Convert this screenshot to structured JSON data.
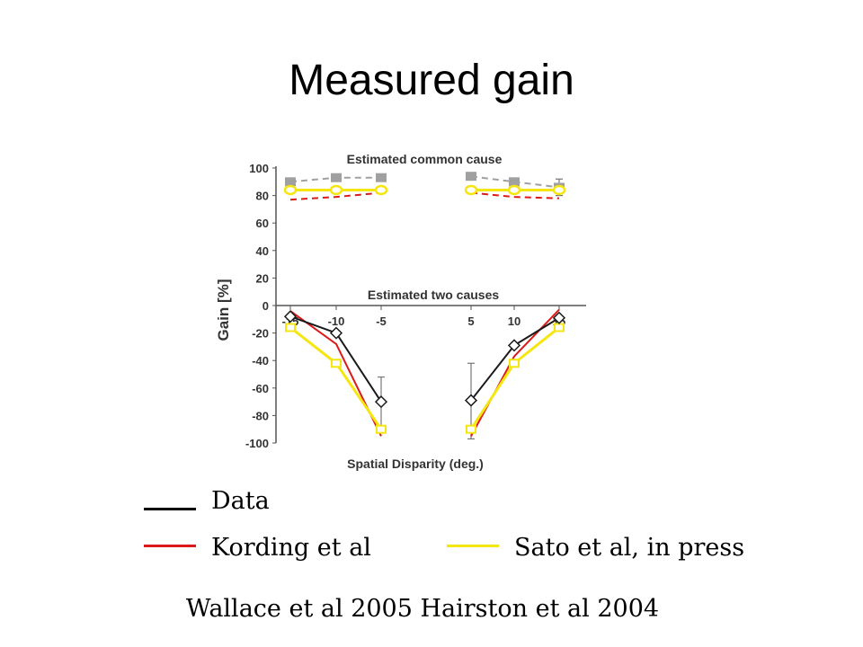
{
  "slide": {
    "title": "Measured gain",
    "footer": "Wallace et al 2005 Hairston et al 2004"
  },
  "legend": {
    "items": [
      {
        "label": "Data",
        "color": "#000000"
      },
      {
        "label": "Kording et al",
        "color": "#dd1a1a"
      },
      {
        "label": "Sato et al, in press",
        "color": "#f5e610"
      }
    ]
  },
  "chart_data": {
    "type": "line",
    "ylabel": "Gain [%]",
    "xlabel": "Spatial Disparity (deg.)",
    "ylim": [
      -100,
      100
    ],
    "yticks": [
      100,
      80,
      60,
      40,
      20,
      0,
      -20,
      -40,
      -60,
      -80,
      -100
    ],
    "xtick_labels": [
      "-15",
      "-10",
      "-5",
      "5",
      "10",
      "15"
    ],
    "x": [
      -15,
      -10,
      -5,
      5,
      10,
      15
    ],
    "annotations": [
      {
        "text": "Estimated common cause"
      },
      {
        "text": "Estimated two causes"
      }
    ],
    "series": [
      {
        "name": "Data",
        "panel": "common",
        "color": "#a0a0a0",
        "style": "dashed",
        "marker": "square",
        "values": [
          90,
          93,
          93,
          94,
          90,
          86
        ]
      },
      {
        "name": "Kording et al",
        "panel": "common",
        "color": "#dd1a1a",
        "style": "dashed",
        "marker": "none",
        "values": [
          77,
          79,
          82,
          82,
          79,
          78
        ]
      },
      {
        "name": "Sato et al, in press",
        "panel": "common",
        "color": "#f5e610",
        "style": "solid",
        "marker": "circle",
        "values": [
          84,
          84,
          84,
          84,
          84,
          84
        ]
      },
      {
        "name": "Data",
        "panel": "two",
        "color": "#1a1a1a",
        "style": "solid",
        "marker": "diamond",
        "values": [
          -8,
          -20,
          -70,
          -69,
          -29,
          -9
        ]
      },
      {
        "name": "Kording et al",
        "panel": "two",
        "color": "#dd1a1a",
        "style": "solid",
        "marker": "none",
        "values": [
          -4,
          -28,
          -95,
          -95,
          -37,
          -3
        ]
      },
      {
        "name": "Sato et al, in press",
        "panel": "two",
        "color": "#f5e610",
        "style": "solid",
        "marker": "square",
        "values": [
          -16,
          -42,
          -90,
          -90,
          -42,
          -16
        ]
      }
    ],
    "error_bars": [
      {
        "series": "Data",
        "panel": "two",
        "x": -5,
        "low": -88,
        "high": -52
      },
      {
        "series": "Data",
        "panel": "two",
        "x": 5,
        "low": -97,
        "high": -42
      },
      {
        "series": "Data",
        "panel": "common",
        "x": 15,
        "low": 80,
        "high": 92
      }
    ]
  }
}
